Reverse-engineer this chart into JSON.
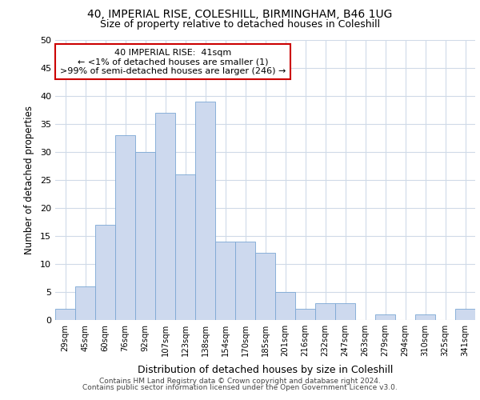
{
  "title1": "40, IMPERIAL RISE, COLESHILL, BIRMINGHAM, B46 1UG",
  "title2": "Size of property relative to detached houses in Coleshill",
  "xlabel": "Distribution of detached houses by size in Coleshill",
  "ylabel": "Number of detached properties",
  "categories": [
    "29sqm",
    "45sqm",
    "60sqm",
    "76sqm",
    "92sqm",
    "107sqm",
    "123sqm",
    "138sqm",
    "154sqm",
    "170sqm",
    "185sqm",
    "201sqm",
    "216sqm",
    "232sqm",
    "247sqm",
    "263sqm",
    "279sqm",
    "294sqm",
    "310sqm",
    "325sqm",
    "341sqm"
  ],
  "values": [
    2,
    6,
    17,
    33,
    30,
    37,
    26,
    39,
    14,
    14,
    12,
    5,
    2,
    3,
    3,
    0,
    1,
    0,
    1,
    0,
    2
  ],
  "bar_color": "#cdd9ee",
  "bar_edge_color": "#7ba7d4",
  "ylim": [
    0,
    50
  ],
  "yticks": [
    0,
    5,
    10,
    15,
    20,
    25,
    30,
    35,
    40,
    45,
    50
  ],
  "annotation_line1": "40 IMPERIAL RISE:  41sqm",
  "annotation_line2": "← <1% of detached houses are smaller (1)",
  "annotation_line3": ">99% of semi-detached houses are larger (246) →",
  "annotation_box_edge_color": "#cc0000",
  "bg_color": "#ffffff",
  "plot_bg_color": "#ffffff",
  "grid_color": "#d0dae8",
  "footer1": "Contains HM Land Registry data © Crown copyright and database right 2024.",
  "footer2": "Contains public sector information licensed under the Open Government Licence v3.0."
}
